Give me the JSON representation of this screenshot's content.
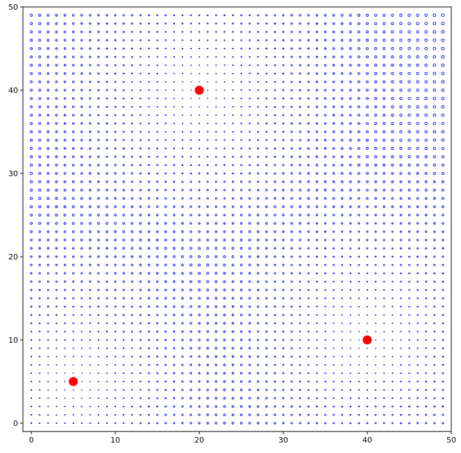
{
  "chart_data": {
    "type": "scatter",
    "title": "",
    "xlabel": "",
    "ylabel": "",
    "xlim": [
      -1,
      50
    ],
    "ylim": [
      -1,
      50
    ],
    "grid": false,
    "x_ticks": [
      0,
      10,
      20,
      30,
      40,
      50
    ],
    "y_ticks": [
      0,
      10,
      20,
      30,
      40,
      50
    ],
    "x_tick_labels": [
      "0",
      "10",
      "20",
      "30",
      "40",
      "50"
    ],
    "y_tick_labels": [
      "0",
      "10",
      "20",
      "30",
      "40",
      "50"
    ],
    "series": [
      {
        "marker": "hollow-circle",
        "color": "#0000ff",
        "description_of_values": "regular grid of hollow circles at every integer point, marker size grows with distance from the nearest red point",
        "x_range": [
          0,
          49
        ],
        "y_range": [
          0,
          49
        ],
        "step": 1
      },
      {
        "marker": "filled-circle",
        "color": "#ff0000",
        "points": [
          {
            "x": 5,
            "y": 5
          },
          {
            "x": 20,
            "y": 40
          },
          {
            "x": 40,
            "y": 10
          }
        ]
      }
    ]
  }
}
